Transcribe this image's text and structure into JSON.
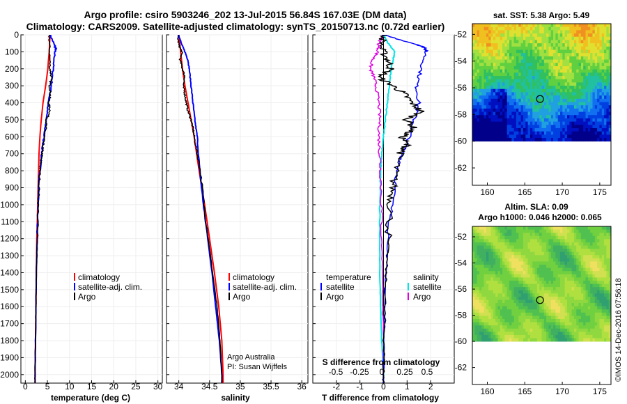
{
  "title_line1": "Argo profile: csiro 5903246_202 13-Jul-2015 56.84S 167.03E (DM data)",
  "title_line2": "Climatology: CARS2009. Satellite-adjusted climatology: synTS_20150713.nc (0.72d earlier)",
  "credit_line1": "Argo Australia",
  "credit_line2": "PI: Susan Wijffels",
  "watermark": "©IMOS 14-Dec-2016 07:56:18",
  "colors": {
    "climatology": "#ff0000",
    "satellite": "#0000ff",
    "argo": "#000000",
    "sat_salinity": "#00e5e5",
    "argo_salinity": "#e000e0"
  },
  "chart_data": [
    {
      "id": "temperature",
      "type": "line",
      "xlabel": "temperature (deg C)",
      "xlim": [
        -1,
        31
      ],
      "xticks": [
        0,
        5,
        10,
        15,
        20,
        25,
        30
      ],
      "ylim": [
        2050,
        0
      ],
      "yticks": [
        0,
        100,
        200,
        300,
        400,
        500,
        600,
        700,
        800,
        900,
        1000,
        1100,
        1200,
        1300,
        1400,
        1500,
        1600,
        1700,
        1800,
        1900,
        2000
      ],
      "legend": [
        "climatology",
        "satellite-adj. clim.",
        "Argo"
      ],
      "series": [
        {
          "name": "climatology",
          "depth": [
            0,
            100,
            200,
            300,
            400,
            500,
            600,
            700,
            800,
            1000,
            1200,
            1400,
            1600,
            1800,
            2000,
            2050
          ],
          "values": [
            5.6,
            5.4,
            5.1,
            4.6,
            4.0,
            3.6,
            3.3,
            3.1,
            3.0,
            2.8,
            2.6,
            2.5,
            2.4,
            2.3,
            2.2,
            2.2
          ]
        },
        {
          "name": "satellite-adj. clim.",
          "depth": [
            0,
            60,
            80,
            100,
            200,
            300,
            400,
            500,
            600,
            700,
            800,
            1000,
            1200,
            1400,
            1600,
            1800,
            2000,
            2050
          ],
          "values": [
            5.6,
            6.6,
            6.9,
            6.7,
            6.3,
            5.9,
            5.2,
            4.7,
            4.2,
            3.7,
            3.3,
            2.9,
            2.7,
            2.5,
            2.4,
            2.3,
            2.2,
            2.2
          ]
        },
        {
          "name": "Argo",
          "depth": [
            0,
            100,
            200,
            250,
            300,
            350,
            400,
            450,
            500,
            550,
            600,
            650,
            700,
            750,
            800,
            900,
            1000,
            1200,
            1400,
            1600,
            1800,
            2000,
            2050
          ],
          "values": [
            5.4,
            5.5,
            5.6,
            5.9,
            5.5,
            5.7,
            5.3,
            5.6,
            4.8,
            4.6,
            4.3,
            4.0,
            3.8,
            3.5,
            3.3,
            3.1,
            2.9,
            2.7,
            2.5,
            2.4,
            2.3,
            2.2,
            2.2
          ]
        }
      ]
    },
    {
      "id": "salinity",
      "type": "line",
      "xlabel": "salinity",
      "xlim": [
        33.8,
        36.1
      ],
      "xticks": [
        34,
        34.5,
        35,
        35.5,
        36
      ],
      "ylim": [
        2050,
        0
      ],
      "legend": [
        "climatology",
        "satellite-adj. clim.",
        "Argo"
      ],
      "series": [
        {
          "name": "climatology",
          "depth": [
            0,
            100,
            200,
            300,
            400,
            500,
            600,
            800,
            1000,
            1200,
            1400,
            1600,
            1800,
            2000,
            2050
          ],
          "values": [
            34.0,
            34.03,
            34.06,
            34.1,
            34.15,
            34.2,
            34.25,
            34.33,
            34.42,
            34.5,
            34.58,
            34.65,
            34.7,
            34.72,
            34.72
          ]
        },
        {
          "name": "satellite-adj. clim.",
          "depth": [
            0,
            50,
            100,
            150,
            200,
            300,
            400,
            500,
            600,
            800,
            1000,
            1200,
            1400,
            1600,
            1800,
            2000,
            2050
          ],
          "values": [
            34.0,
            34.04,
            34.1,
            34.15,
            34.17,
            34.2,
            34.23,
            34.26,
            34.3,
            34.34,
            34.4,
            34.47,
            34.54,
            34.6,
            34.66,
            34.7,
            34.7
          ]
        },
        {
          "name": "Argo",
          "depth": [
            0,
            60,
            100,
            150,
            200,
            250,
            300,
            350,
            400,
            450,
            500,
            550,
            600,
            700,
            800,
            1000,
            1200,
            1400,
            1600,
            1800,
            2000,
            2050
          ],
          "values": [
            33.98,
            34.0,
            34.05,
            34.02,
            34.06,
            34.1,
            34.07,
            34.1,
            34.12,
            34.15,
            34.2,
            34.23,
            34.25,
            34.3,
            34.35,
            34.41,
            34.48,
            34.55,
            34.62,
            34.67,
            34.7,
            34.7
          ]
        }
      ]
    },
    {
      "id": "differences",
      "type": "line",
      "xlabel": "T difference from climatology",
      "xlim": [
        -3,
        3
      ],
      "xticks": [
        -2,
        -1,
        0,
        1,
        2
      ],
      "secondary_xlabel": "S difference from climatology",
      "secondary_ticks": [
        "-0.5",
        "-0.25",
        "0",
        "0.25",
        "0.5"
      ],
      "ylim": [
        2050,
        0
      ],
      "legend_left_title": "temperature",
      "legend_right_title": "salinity",
      "legend_labels": [
        "satellite",
        "Argo"
      ],
      "series": [
        {
          "name": "temperature satellite",
          "depth": [
            0,
            60,
            80,
            100,
            200,
            300,
            400,
            500,
            600,
            700,
            800,
            1000,
            1200,
            1400,
            1600,
            1800,
            2000,
            2050
          ],
          "values": [
            0.0,
            1.5,
            1.8,
            1.8,
            1.6,
            1.4,
            1.5,
            1.3,
            1.1,
            0.8,
            0.6,
            0.35,
            0.2,
            0.1,
            0.05,
            0.03,
            0.0,
            0.0
          ]
        },
        {
          "name": "temperature Argo",
          "depth": [
            0,
            80,
            150,
            200,
            250,
            300,
            350,
            400,
            450,
            500,
            550,
            600,
            650,
            700,
            800,
            900,
            1000,
            1200,
            1400,
            1600,
            1800,
            2000,
            2050
          ],
          "values": [
            0.0,
            -0.1,
            0.2,
            0.3,
            -0.2,
            0.4,
            0.9,
            1.2,
            1.6,
            1.0,
            1.3,
            0.8,
            1.0,
            0.7,
            0.5,
            0.4,
            0.3,
            0.2,
            0.1,
            0.05,
            0.03,
            0.0,
            0.0
          ]
        },
        {
          "name": "salinity satellite",
          "depth": [
            0,
            50,
            100,
            150,
            200,
            300,
            400,
            500,
            600,
            700,
            800,
            1000,
            1200,
            1400,
            1600,
            1800,
            2000,
            2050
          ],
          "values": [
            0.0,
            0.05,
            0.12,
            0.1,
            0.08,
            0.06,
            0.04,
            0.02,
            0.0,
            -0.02,
            -0.03,
            -0.04,
            -0.04,
            -0.04,
            -0.03,
            -0.02,
            0.0,
            0.0
          ]
        },
        {
          "name": "salinity Argo",
          "depth": [
            0,
            50,
            100,
            150,
            200,
            250,
            300,
            400,
            500,
            600,
            700,
            800,
            1000,
            1200,
            1400,
            1600,
            1800,
            2000,
            2050
          ],
          "values": [
            0.0,
            -0.05,
            -0.06,
            -0.12,
            -0.14,
            -0.1,
            -0.08,
            -0.05,
            -0.04,
            -0.05,
            -0.04,
            -0.03,
            -0.02,
            -0.02,
            -0.01,
            -0.01,
            0.0,
            0.0,
            0.0
          ]
        }
      ]
    },
    {
      "id": "sst_map",
      "type": "heatmap",
      "title": "sat. SST: 5.38  Argo: 5.49",
      "xticks": [
        160,
        165,
        170,
        175
      ],
      "yticks": [
        -52,
        -54,
        -56,
        -58,
        -60,
        -62
      ],
      "lon_range": [
        158,
        176.5
      ],
      "lat_range": [
        -63.3,
        -51.2
      ],
      "data_lat_min": -60,
      "profile_location": [
        167.03,
        -56.84
      ]
    },
    {
      "id": "sla_map",
      "type": "heatmap",
      "title_line1": "Altim. SLA: 0.09",
      "title_line2": "Argo h1000: 0.046  h2000: 0.065",
      "xticks": [
        160,
        165,
        170,
        175
      ],
      "yticks": [
        -52,
        -54,
        -56,
        -58,
        -60,
        -62
      ],
      "lon_range": [
        158,
        176.5
      ],
      "lat_range": [
        -63.3,
        -51.2
      ],
      "data_lat_min": -60,
      "profile_location": [
        167.03,
        -56.84
      ]
    }
  ]
}
